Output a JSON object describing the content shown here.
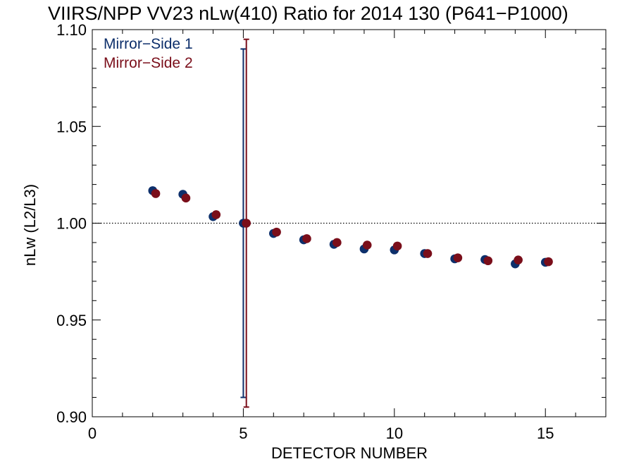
{
  "chart_data": {
    "type": "scatter",
    "title": "VIIRS/NPP VV23 nLw(410) Ratio for 2014 130 (P641−P1000)",
    "xlabel": "DETECTOR NUMBER",
    "ylabel": "nLw (L2/L3)",
    "xlim": [
      0,
      17
    ],
    "ylim": [
      0.9,
      1.1
    ],
    "x_ticks": [
      0,
      5,
      10,
      15
    ],
    "x_tick_labels": [
      "0",
      "5",
      "10",
      "15"
    ],
    "y_ticks": [
      0.9,
      0.95,
      1.0,
      1.05,
      1.1
    ],
    "y_tick_labels": [
      "0.90",
      "0.95",
      "1.00",
      "1.05",
      "1.10"
    ],
    "reference_line": 1.0,
    "legend_position": "top-left",
    "series": [
      {
        "name": "Mirror−Side 1",
        "color": "#0d2f6b",
        "x": [
          2,
          3,
          4,
          5,
          6,
          7,
          8,
          9,
          10,
          11,
          12,
          13,
          14,
          15
        ],
        "values": [
          1.0168,
          1.0149,
          1.0034,
          1.0,
          0.9947,
          0.9914,
          0.9891,
          0.9867,
          0.9862,
          0.9843,
          0.9816,
          0.9812,
          0.979,
          0.9798
        ],
        "error_bar": {
          "x": 5,
          "low": 0.91,
          "high": 1.09
        }
      },
      {
        "name": "Mirror−Side 2",
        "color": "#7a0e1a",
        "x": [
          2,
          3,
          4,
          5,
          6,
          7,
          8,
          9,
          10,
          11,
          12,
          13,
          14,
          15
        ],
        "values": [
          1.0153,
          1.013,
          1.0044,
          1.0,
          0.9954,
          0.992,
          0.99,
          0.9887,
          0.9882,
          0.9843,
          0.9821,
          0.9806,
          0.981,
          0.9801
        ],
        "error_bar": {
          "x": 5,
          "low": 0.905,
          "high": 1.095
        }
      }
    ]
  }
}
